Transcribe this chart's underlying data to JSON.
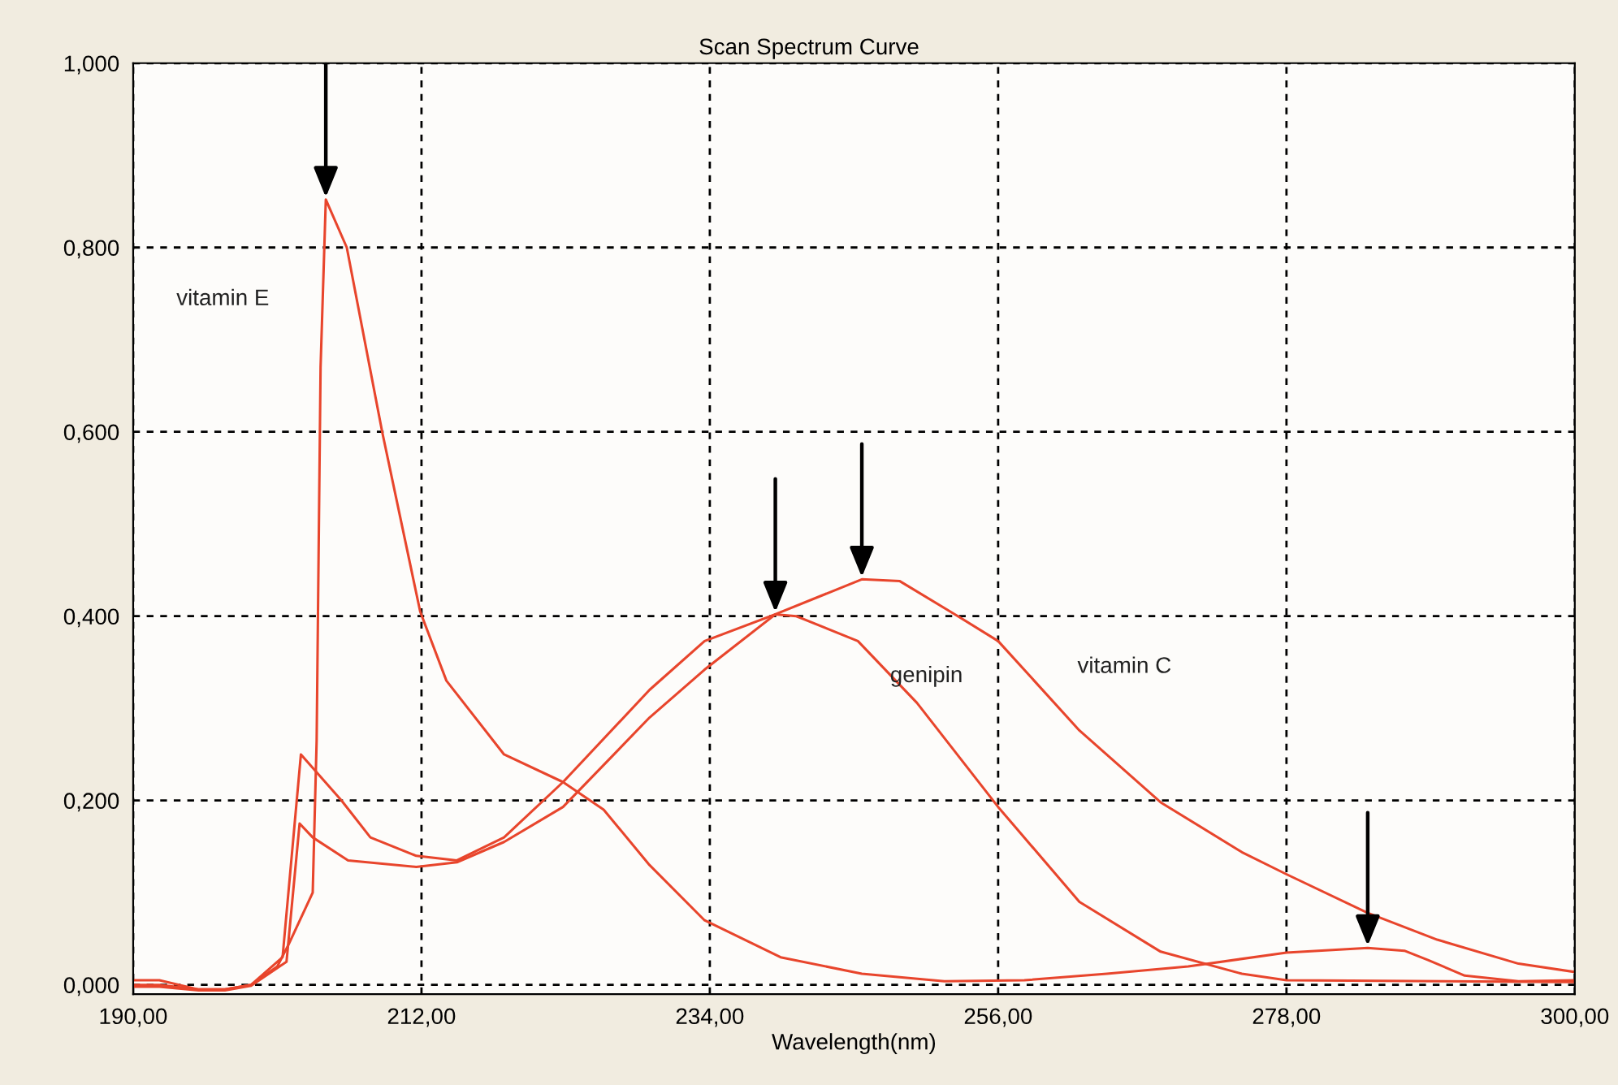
{
  "chart_data": {
    "type": "line",
    "title": "Scan Spectrum Curve",
    "xlabel": "Wavelength(nm)",
    "xlim": [
      190,
      300
    ],
    "ylim": [
      -0.01,
      1.0
    ],
    "xticks": [
      {
        "value": 190,
        "label": "190,00"
      },
      {
        "value": 212,
        "label": "212,00"
      },
      {
        "value": 234,
        "label": "234,00"
      },
      {
        "value": 256,
        "label": "256,00"
      },
      {
        "value": 278,
        "label": "278,00"
      },
      {
        "value": 300,
        "label": "300,00"
      }
    ],
    "yticks": [
      {
        "value": 0,
        "label": "0,000"
      },
      {
        "value": 0.2,
        "label": "0,200"
      },
      {
        "value": 0.4,
        "label": "0,400"
      },
      {
        "value": 0.6,
        "label": "0,600"
      },
      {
        "value": 0.8,
        "label": "0,800"
      },
      {
        "value": 1.0,
        "label": "1,000"
      }
    ],
    "grid": true,
    "legend": false,
    "marker": "none",
    "line_style": "solid",
    "series": [
      {
        "name": "vitamin E",
        "color": "#e8452c",
        "x": [
          190,
          192,
          195,
          197,
          199,
          201,
          201.9,
          203.7,
          204,
          204.3,
          204.7,
          206.3,
          209.0,
          211.9,
          213.9,
          218.3,
          222.8,
          225.9,
          229.4,
          233.6,
          239.4,
          245.6,
          251.9,
          258,
          264.3,
          270.5,
          278,
          284.2,
          287,
          288.8,
          291.6,
          295.7,
          300
        ],
        "values": [
          0.005,
          0.005,
          -0.005,
          -0.005,
          0.0,
          0.02,
          0.045,
          0.1,
          0.265,
          0.67,
          0.852,
          0.8,
          0.6,
          0.405,
          0.33,
          0.25,
          0.22,
          0.19,
          0.13,
          0.07,
          0.03,
          0.012,
          0.004,
          0.005,
          0.012,
          0.02,
          0.035,
          0.04,
          0.037,
          0.027,
          0.01,
          0.004,
          0.005
        ]
      },
      {
        "name": "genipin",
        "color": "#e8452c",
        "x": [
          190,
          192,
          195,
          197,
          199,
          201.4,
          202.8,
          205.9,
          208.1,
          211.6,
          214.7,
          218.3,
          222.8,
          229.4,
          233.6,
          239,
          240.6,
          245.3,
          249.8,
          256,
          262.2,
          268.4,
          274.6,
          278,
          300
        ],
        "values": [
          0.0,
          0.0,
          -0.005,
          -0.005,
          0.0,
          0.03,
          0.25,
          0.2,
          0.16,
          0.14,
          0.135,
          0.16,
          0.22,
          0.32,
          0.373,
          0.402,
          0.4,
          0.373,
          0.306,
          0.193,
          0.09,
          0.036,
          0.012,
          0.005,
          0.003
        ]
      },
      {
        "name": "vitamin C",
        "color": "#e8452c",
        "x": [
          190,
          192,
          195,
          197,
          199,
          201.7,
          202.7,
          203.7,
          206.4,
          211.6,
          214.7,
          218.3,
          222.8,
          229.4,
          233.6,
          239,
          245.6,
          248.5,
          252.7,
          256,
          262.2,
          268.4,
          274.6,
          278,
          284.2,
          289.5,
          295.7,
          300
        ],
        "values": [
          -0.002,
          -0.002,
          -0.006,
          -0.006,
          -0.001,
          0.025,
          0.175,
          0.16,
          0.135,
          0.128,
          0.133,
          0.155,
          0.193,
          0.29,
          0.342,
          0.402,
          0.44,
          0.438,
          0.402,
          0.373,
          0.276,
          0.198,
          0.144,
          0.12,
          0.078,
          0.049,
          0.023,
          0.014
        ]
      }
    ]
  }
}
